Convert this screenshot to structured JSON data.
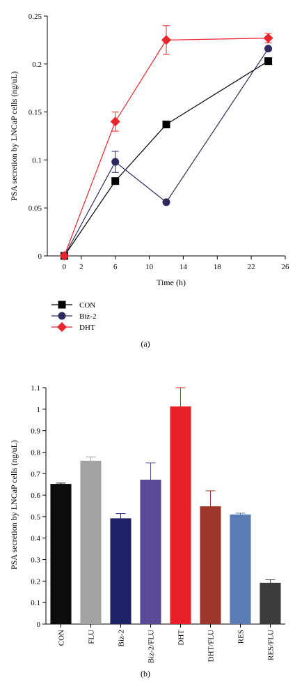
{
  "chart_data": [
    {
      "panel": "(a)",
      "type": "line",
      "xlabel": "Time (h)",
      "ylabel": "PSA secretion by LNCaP cells (ng/uL)",
      "xlim": [
        -2,
        26
      ],
      "ylim": [
        0,
        0.25
      ],
      "xticks": [
        0,
        2,
        6,
        10,
        14,
        18,
        22,
        26
      ],
      "yticks": [
        0,
        0.05,
        0.1,
        0.15,
        0.2,
        0.25
      ],
      "ytick_labels": [
        "0",
        "0.05",
        "0.1",
        "0.15",
        "0.2",
        "0.25"
      ],
      "legend_position": "bottom-left, below plot",
      "series": [
        {
          "name": "CON",
          "color": "#000000",
          "marker": "square",
          "x": [
            0,
            6,
            12,
            24
          ],
          "y": [
            0,
            0.078,
            0.137,
            0.203
          ],
          "err": [
            0,
            0,
            0,
            0
          ]
        },
        {
          "name": "Biz-2",
          "color": "#2e2a5e",
          "marker": "circle",
          "x": [
            0,
            6,
            12,
            24
          ],
          "y": [
            0,
            0.098,
            0.056,
            0.216
          ],
          "err": [
            0,
            0.011,
            0,
            0
          ]
        },
        {
          "name": "DHT",
          "color": "#e8242c",
          "marker": "diamond",
          "x": [
            0,
            6,
            12,
            24
          ],
          "y": [
            0,
            0.14,
            0.225,
            0.227
          ],
          "err": [
            0,
            0.01,
            0.015,
            0.005
          ]
        }
      ]
    },
    {
      "panel": "(b)",
      "type": "bar",
      "ylabel": "PSA secretion by LNCaP cells (ng/uL)",
      "ylim": [
        0,
        1.1
      ],
      "yticks": [
        0,
        0.1,
        0.2,
        0.3,
        0.4,
        0.5,
        0.6,
        0.7,
        0.8,
        0.9,
        1,
        1.1
      ],
      "ytick_labels": [
        "0",
        "0.1",
        "0.2",
        "0.3",
        "0.4",
        "0.5",
        "0.6",
        "0.7",
        "0.8",
        "0.9",
        "1",
        "1.1"
      ],
      "categories": [
        "CON",
        "FLU",
        "Biz-2",
        "Biz-2/FLU",
        "DHT",
        "DHT/FLU",
        "RES",
        "RES/FLU"
      ],
      "values": [
        0.652,
        0.76,
        0.492,
        0.672,
        1.013,
        0.548,
        0.51,
        0.192
      ],
      "errors": [
        0.004,
        0.018,
        0.022,
        0.078,
        0.087,
        0.072,
        0.006,
        0.014
      ],
      "colors": [
        "#0c0c0c",
        "#a3a3a3",
        "#1e2266",
        "#5a4a98",
        "#ea2028",
        "#a0372c",
        "#5a7db5",
        "#3c3c3c"
      ]
    }
  ]
}
